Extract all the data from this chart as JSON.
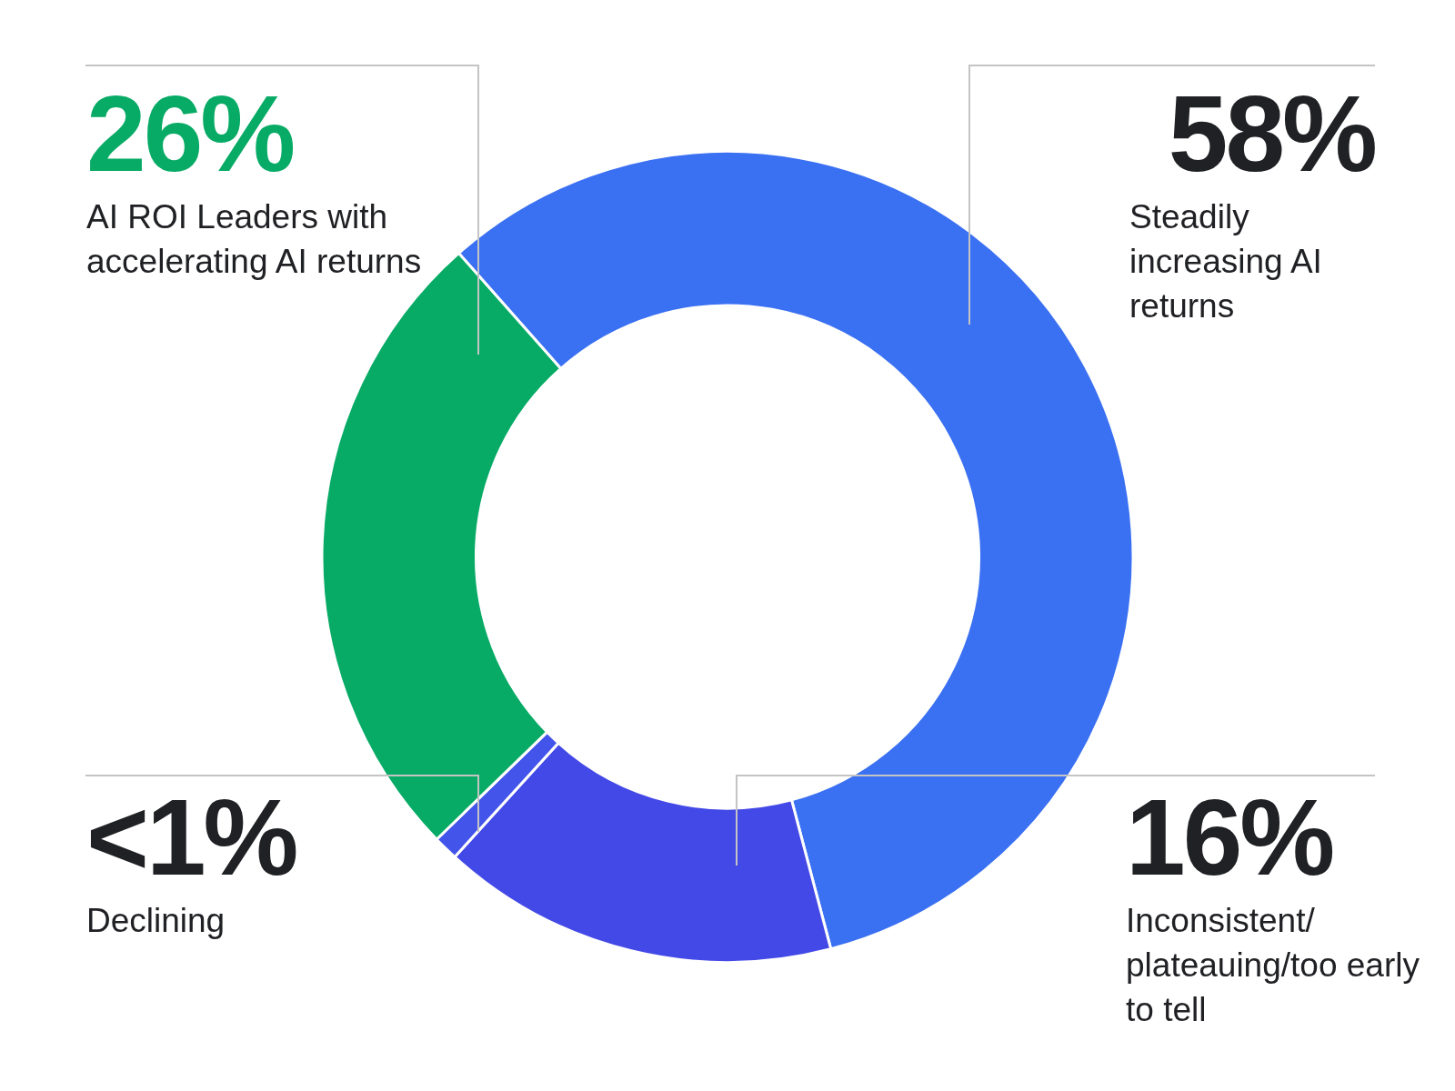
{
  "chart_data": {
    "type": "donut",
    "categories": [
      "Steadily increasing AI returns",
      "Inconsistent/plateauing/too early to tell",
      "Declining",
      "AI ROI Leaders with accelerating AI returns"
    ],
    "values": [
      58,
      16,
      1,
      26
    ],
    "value_labels": [
      "58%",
      "16%",
      "<1%",
      "26%"
    ],
    "colors": [
      "#3a70f2",
      "#4349e6",
      "#4254ea",
      "#07ab66"
    ],
    "legend": false
  }
}
